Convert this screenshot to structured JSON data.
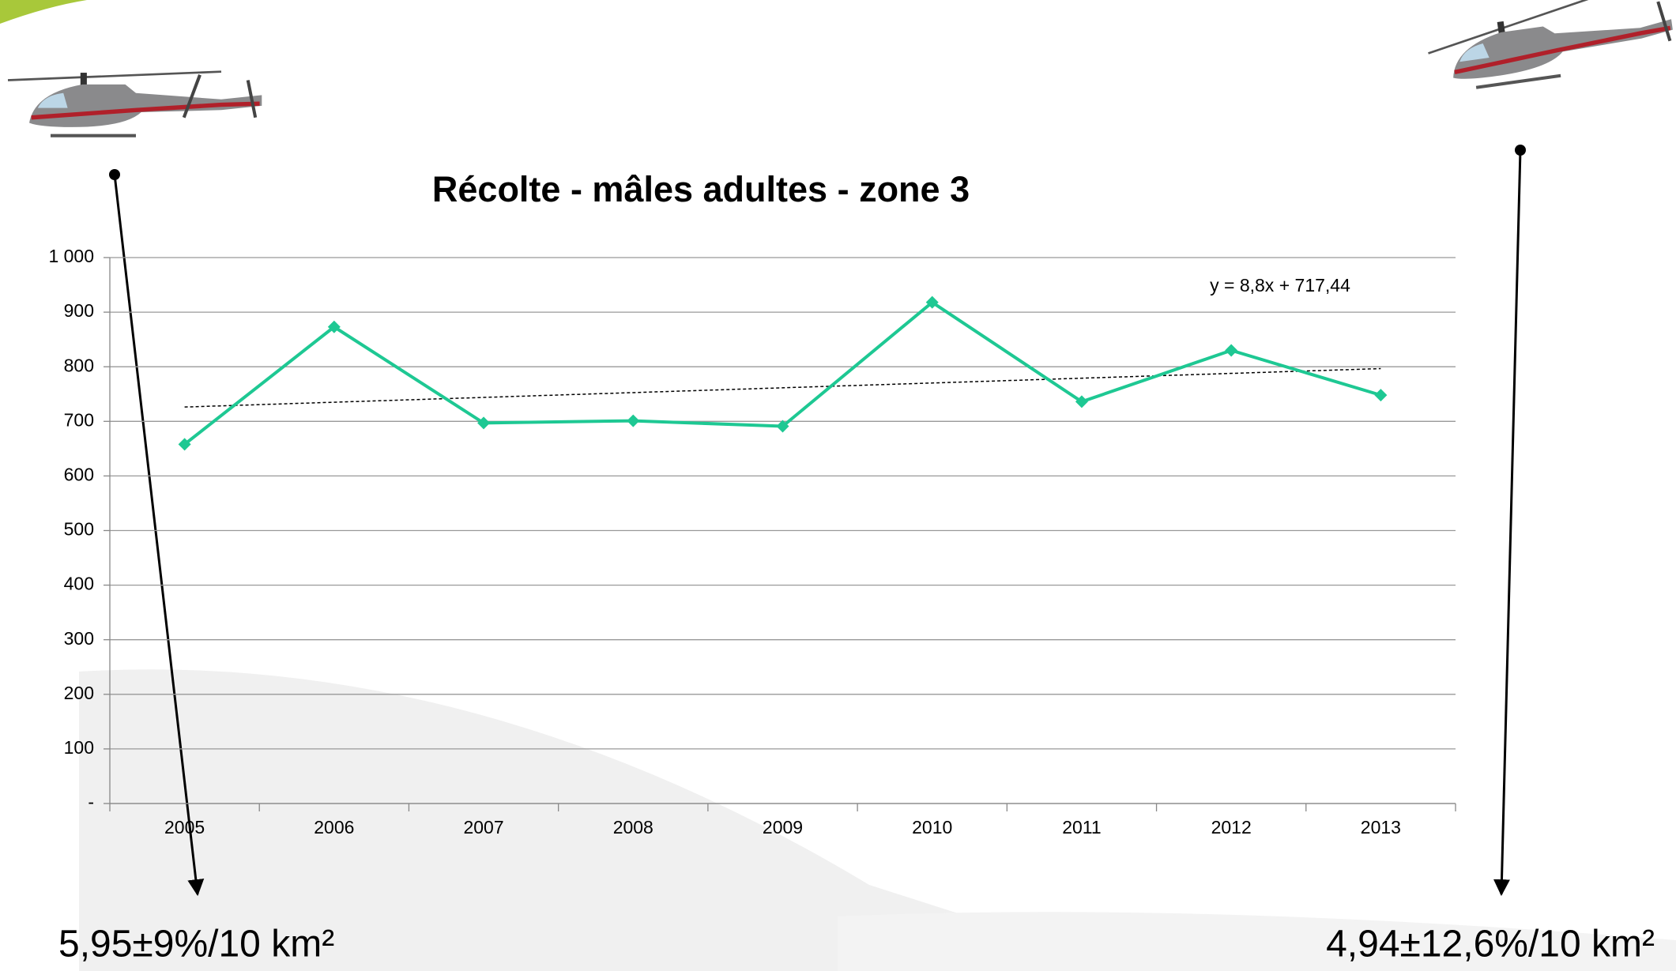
{
  "chart_data": {
    "type": "line",
    "title": "Récolte - mâles adultes - zone 3",
    "categories": [
      "2005",
      "2006",
      "2007",
      "2008",
      "2009",
      "2010",
      "2011",
      "2012",
      "2013"
    ],
    "values": [
      658,
      873,
      697,
      701,
      691,
      918,
      736,
      830,
      748
    ],
    "color": "#1ec893",
    "ylim": [
      0,
      1000
    ],
    "yticks": [
      {
        "value": 0,
        "label": "-"
      },
      100,
      200,
      300,
      400,
      500,
      600,
      700,
      800,
      900,
      {
        "value": 1000,
        "label": "1 000"
      }
    ],
    "grid": true,
    "trendline": {
      "label": "y = 8,8x + 717,44",
      "slope": 8.8,
      "intercept": 717.44
    },
    "annotations": [
      "5,95±9%/10 km²",
      "4,94±12,6%/10 km²"
    ]
  }
}
